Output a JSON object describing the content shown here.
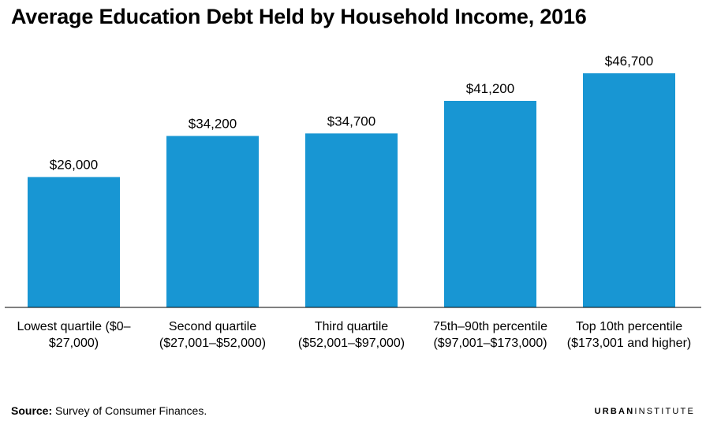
{
  "chart_data": {
    "type": "bar",
    "title": "Average Education Debt Held by Household Income, 2016",
    "categories": [
      [
        "Lowest quartile ($0–",
        "$27,000)"
      ],
      [
        "Second quartile",
        "($27,001–$52,000)"
      ],
      [
        "Third quartile",
        "($52,001–$97,000)"
      ],
      [
        "75th–90th percentile",
        "($97,001–$173,000)"
      ],
      [
        "Top 10th percentile",
        "($173,001 and higher)"
      ]
    ],
    "values": [
      26000,
      34200,
      34700,
      41200,
      46700
    ],
    "data_labels": [
      "$26,000",
      "$34,200",
      "$34,700",
      "$41,200",
      "$46,700"
    ],
    "ylim": [
      0,
      50000
    ],
    "bar_color": "#1896d3",
    "grid": false,
    "legend": "none"
  },
  "source": {
    "label": "Source:",
    "text": "Survey of Consumer Finances."
  },
  "brand": {
    "name_bold": "URBAN",
    "name_light": "INSTITUTE"
  }
}
